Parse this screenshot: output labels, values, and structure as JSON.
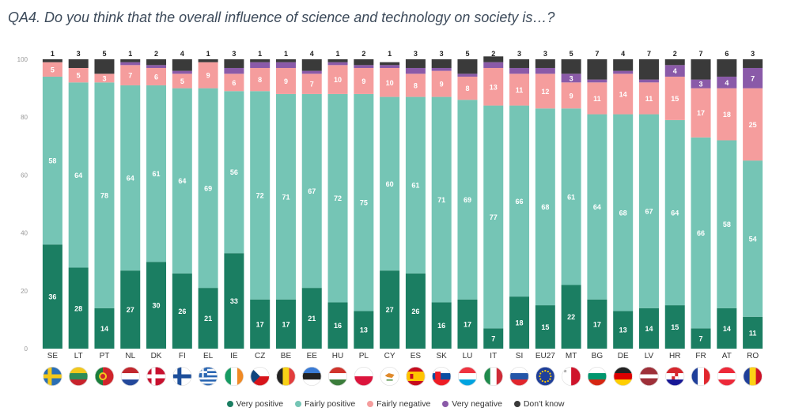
{
  "chart_data": {
    "type": "bar",
    "stacked": true,
    "title": "QA4. Do you think that the overall influence of science and technology on society is…?",
    "yticks": [
      "0",
      "20",
      "40",
      "60",
      "80",
      "100"
    ],
    "ylim": [
      0,
      100
    ],
    "categories": [
      "SE",
      "LT",
      "PT",
      "NL",
      "DK",
      "FI",
      "EL",
      "IE",
      "CZ",
      "BE",
      "EE",
      "HU",
      "PL",
      "CY",
      "ES",
      "SK",
      "LU",
      "IT",
      "SI",
      "EU27",
      "MT",
      "BG",
      "DE",
      "LV",
      "HR",
      "FR",
      "AT",
      "RO"
    ],
    "series": [
      {
        "name": "Very positive",
        "color": "#1b7e62",
        "values": [
          36,
          28,
          14,
          27,
          30,
          26,
          21,
          33,
          17,
          17,
          21,
          16,
          13,
          27,
          26,
          16,
          17,
          7,
          18,
          15,
          22,
          17,
          13,
          14,
          15,
          7,
          14,
          11
        ]
      },
      {
        "name": "Fairly positive",
        "color": "#75c5b5",
        "values": [
          58,
          64,
          78,
          64,
          61,
          64,
          69,
          56,
          72,
          71,
          67,
          72,
          75,
          60,
          61,
          71,
          69,
          77,
          66,
          68,
          61,
          64,
          68,
          67,
          64,
          66,
          58,
          54
        ]
      },
      {
        "name": "Fairly negative",
        "color": "#f59d9d",
        "values": [
          5,
          5,
          3,
          7,
          6,
          5,
          9,
          6,
          8,
          9,
          7,
          10,
          9,
          10,
          8,
          9,
          8,
          13,
          11,
          12,
          9,
          11,
          14,
          11,
          15,
          17,
          18,
          25
        ]
      },
      {
        "name": "Very negative",
        "color": "#8a5aa8",
        "values": [
          0,
          0,
          0,
          1,
          1,
          1,
          0,
          2,
          2,
          2,
          1,
          1,
          1,
          1,
          2,
          1,
          1,
          2,
          2,
          2,
          3,
          1,
          1,
          1,
          4,
          3,
          4,
          7
        ]
      },
      {
        "name": "Don't know",
        "color": "#3a3a3a",
        "values": [
          1,
          3,
          5,
          1,
          2,
          4,
          1,
          3,
          1,
          1,
          4,
          1,
          2,
          1,
          3,
          3,
          5,
          2,
          3,
          3,
          5,
          7,
          4,
          7,
          2,
          7,
          6,
          3
        ]
      }
    ],
    "top_labels": [
      "1",
      "3",
      "5",
      "1",
      "2",
      "4",
      "1",
      "3",
      "1",
      "1",
      "4",
      "1",
      "2",
      "1",
      "3",
      "3",
      "5",
      "2",
      "3",
      "3",
      "5",
      "7",
      "4",
      "7",
      "2",
      "7",
      "6",
      "3"
    ],
    "segment_labels": {
      "Very positive": [
        "36",
        "28",
        "14",
        "27",
        "30",
        "26",
        "21",
        "33",
        "17",
        "17",
        "21",
        "16",
        "13",
        "27",
        "26",
        "16",
        "17",
        "7",
        "18",
        "15",
        "22",
        "17",
        "13",
        "14",
        "15",
        "7",
        "14",
        "11"
      ],
      "Fairly positive": [
        "58",
        "64",
        "78",
        "64",
        "61",
        "64",
        "69",
        "56",
        "72",
        "71",
        "67",
        "72",
        "75",
        "60",
        "61",
        "71",
        "69",
        "77",
        "66",
        "68",
        "61",
        "64",
        "68",
        "67",
        "64",
        "66",
        "58",
        "54"
      ],
      "Fairly negative": [
        "5",
        "5",
        "3",
        "7",
        "6",
        "5",
        "9",
        "6",
        "8",
        "9",
        "7",
        "10",
        "9",
        "10",
        "8",
        "9",
        "8",
        "13",
        "11",
        "12",
        "9",
        "11",
        "14",
        "11",
        "15",
        "17",
        "18",
        "25"
      ],
      "Very negative": [
        "",
        "",
        "",
        "",
        "",
        "",
        "",
        "",
        "",
        "",
        "",
        "",
        "",
        "",
        "",
        "",
        "",
        "",
        "",
        "",
        "3",
        "",
        "",
        "",
        "4",
        "3",
        "4",
        "7"
      ]
    }
  },
  "flags": [
    {
      "code": "SE",
      "type": "nordic",
      "bg": "#2a6fb5",
      "fg": "#f2c81c"
    },
    {
      "code": "LT",
      "type": "h3",
      "c": [
        "#f2c81c",
        "#2e8b57",
        "#c8232c"
      ]
    },
    {
      "code": "PT",
      "type": "pt",
      "c": [
        "#1a7f3c",
        "#d0242b"
      ]
    },
    {
      "code": "NL",
      "type": "h3",
      "c": [
        "#c1272d",
        "#ffffff",
        "#23489b"
      ]
    },
    {
      "code": "DK",
      "type": "nordic",
      "bg": "#c8102e",
      "fg": "#ffffff"
    },
    {
      "code": "FI",
      "type": "nordic",
      "bg": "#ffffff",
      "fg": "#1d4f9a"
    },
    {
      "code": "EL",
      "type": "gr",
      "c": [
        "#2b67b3",
        "#ffffff"
      ]
    },
    {
      "code": "IE",
      "type": "v3",
      "c": [
        "#169b62",
        "#ffffff",
        "#f08a24"
      ]
    },
    {
      "code": "CZ",
      "type": "cz",
      "c": [
        "#ffffff",
        "#d7141a",
        "#11457e"
      ]
    },
    {
      "code": "BE",
      "type": "v3",
      "c": [
        "#222222",
        "#f7d117",
        "#e23c3c"
      ]
    },
    {
      "code": "EE",
      "type": "h3",
      "c": [
        "#3a7bd5",
        "#222222",
        "#ffffff"
      ]
    },
    {
      "code": "HU",
      "type": "h3",
      "c": [
        "#d0342c",
        "#ffffff",
        "#3b7d3b"
      ]
    },
    {
      "code": "PL",
      "type": "h2",
      "c": [
        "#ffffff",
        "#dc143c"
      ]
    },
    {
      "code": "CY",
      "type": "cy",
      "c": [
        "#ffffff",
        "#e08a2b"
      ]
    },
    {
      "code": "ES",
      "type": "es",
      "c": [
        "#c60b1e",
        "#ffc400"
      ]
    },
    {
      "code": "SK",
      "type": "h3",
      "c": [
        "#ffffff",
        "#0b4ea2",
        "#ee1c25"
      ]
    },
    {
      "code": "LU",
      "type": "h3",
      "c": [
        "#ef3340",
        "#ffffff",
        "#00a3e0"
      ]
    },
    {
      "code": "IT",
      "type": "v3",
      "c": [
        "#1f8a4c",
        "#ffffff",
        "#ce2b37"
      ]
    },
    {
      "code": "SI",
      "type": "h3",
      "c": [
        "#ffffff",
        "#2356a8",
        "#e1262d"
      ]
    },
    {
      "code": "EU27",
      "type": "eu",
      "c": [
        "#1f3f9a",
        "#ffcc00"
      ]
    },
    {
      "code": "MT",
      "type": "v2",
      "c": [
        "#ffffff",
        "#cf142b"
      ]
    },
    {
      "code": "BG",
      "type": "h3",
      "c": [
        "#ffffff",
        "#00966e",
        "#d62612"
      ]
    },
    {
      "code": "DE",
      "type": "h3",
      "c": [
        "#222222",
        "#dd0000",
        "#ffce00"
      ]
    },
    {
      "code": "LV",
      "type": "lv",
      "c": [
        "#9e3039",
        "#ffffff"
      ]
    },
    {
      "code": "HR",
      "type": "h3",
      "c": [
        "#d6262d",
        "#ffffff",
        "#171796"
      ]
    },
    {
      "code": "FR",
      "type": "v3",
      "c": [
        "#1f3f9a",
        "#ffffff",
        "#e1262d"
      ]
    },
    {
      "code": "AT",
      "type": "h3",
      "c": [
        "#ed2939",
        "#ffffff",
        "#ed2939"
      ]
    },
    {
      "code": "RO",
      "type": "v3",
      "c": [
        "#1f3f9a",
        "#fcd116",
        "#ce1126"
      ]
    }
  ],
  "legend": [
    {
      "label": "Very positive",
      "color": "#1b7e62"
    },
    {
      "label": "Fairly positive",
      "color": "#75c5b5"
    },
    {
      "label": "Fairly negative",
      "color": "#f59d9d"
    },
    {
      "label": "Very negative",
      "color": "#8a5aa8"
    },
    {
      "label": "Don't know",
      "color": "#3a3a3a"
    }
  ]
}
